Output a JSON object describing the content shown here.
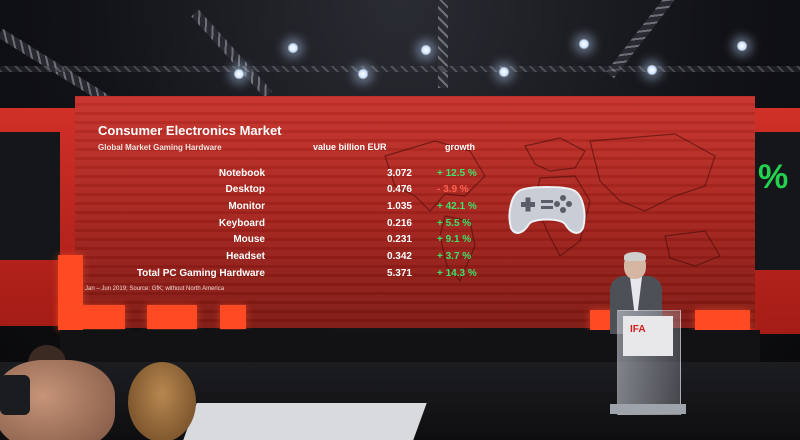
{
  "slide": {
    "title": "Consumer Electronics Market",
    "subtitle": "Global Market Gaming Hardware",
    "columns": {
      "value": "value billion EUR",
      "growth": "growth"
    },
    "rows": [
      {
        "label": "Notebook",
        "value": "3.072",
        "growth": "+ 12.5 %",
        "sign": "pos"
      },
      {
        "label": "Desktop",
        "value": "0.476",
        "growth": "- 3.9 %",
        "sign": "neg"
      },
      {
        "label": "Monitor",
        "value": "1.035",
        "growth": "+ 42.1 %",
        "sign": "pos"
      },
      {
        "label": "Keyboard",
        "value": "0.216",
        "growth": "+ 5.5 %",
        "sign": "pos"
      },
      {
        "label": "Mouse",
        "value": "0.231",
        "growth": "+ 9.1 %",
        "sign": "pos"
      },
      {
        "label": "Headset",
        "value": "0.342",
        "growth": "+ 3.7 %",
        "sign": "pos"
      },
      {
        "label": "Total PC Gaming Hardware",
        "value": "5.371",
        "growth": "+ 14.3 %",
        "sign": "pos"
      }
    ],
    "source": "Jan – Jun 2019; Source: GfK; without North America",
    "icon": "gamepad-icon"
  },
  "side_screen": {
    "symbol": "%"
  },
  "lectern": {
    "logo": "IFA"
  },
  "colors": {
    "screen": "#c7322a",
    "positive": "#3ee36a",
    "negative": "#ff6050",
    "accent": "#ff4a24"
  }
}
